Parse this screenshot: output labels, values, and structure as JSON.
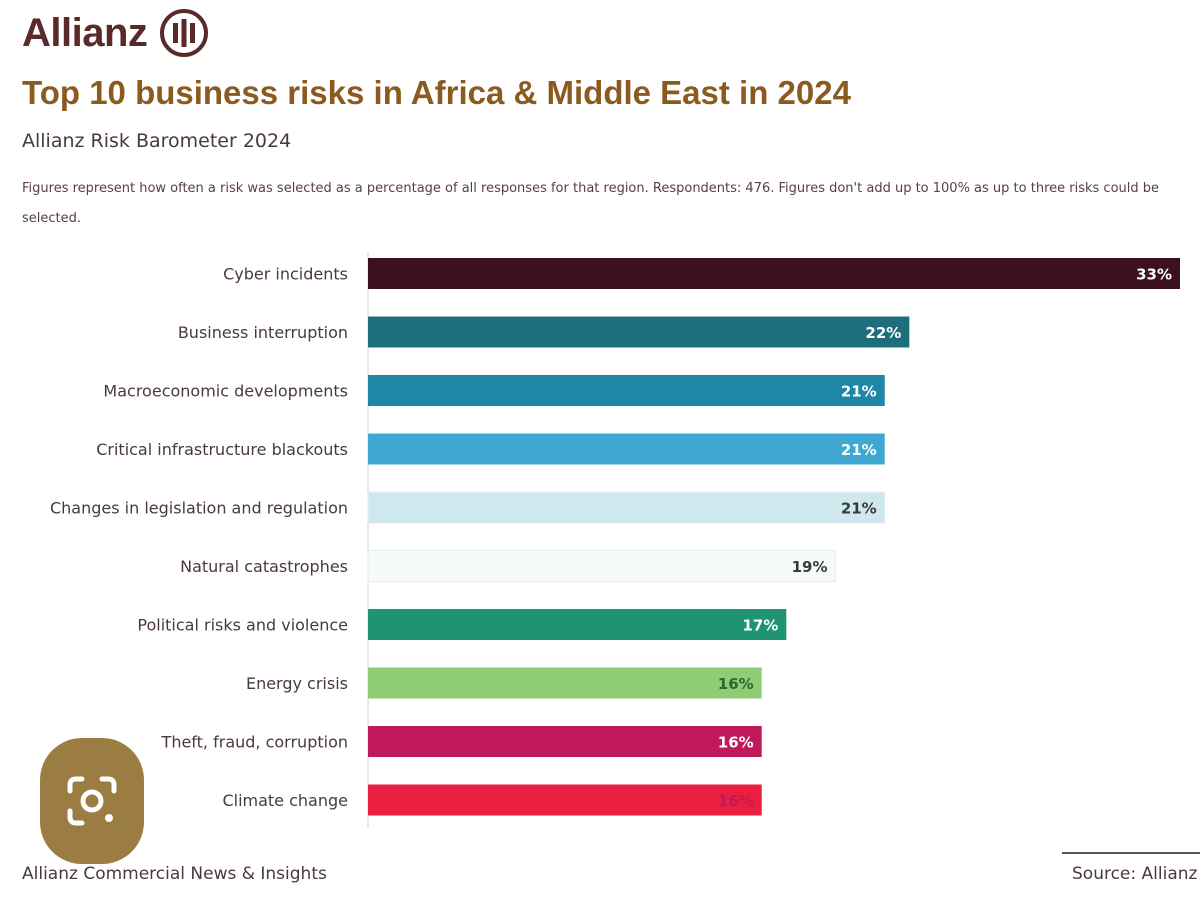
{
  "header": {
    "logo_text": "Allianz",
    "title": "Top 10 business risks in Africa & Middle East in 2024",
    "subtitle": "Allianz Risk Barometer 2024",
    "note": "Figures represent how often a risk was selected as a percentage of all responses for that region. Respondents: 476. Figures don't add up to 100% as up to three risks could be selected."
  },
  "footer": {
    "left": "Allianz Commercial News & Insights",
    "right": "Source: Allianz"
  },
  "icons": {
    "lens": "camera-lens-icon",
    "logo": "allianz-eagle-logo"
  },
  "chart_data": {
    "type": "bar",
    "orientation": "horizontal",
    "categories": [
      "Cyber incidents",
      "Business interruption",
      "Macroeconomic developments",
      "Critical infrastructure blackouts",
      "Changes in legislation and regulation",
      "Natural catastrophes",
      "Political risks and violence",
      "Energy crisis",
      "Theft, fraud, corruption",
      "Climate change"
    ],
    "values": [
      33,
      22,
      21,
      21,
      21,
      19,
      17,
      16,
      16,
      16
    ],
    "value_labels": [
      "33%",
      "22%",
      "21%",
      "21%",
      "21%",
      "19%",
      "17%",
      "16%",
      "16%",
      "16%"
    ],
    "colors": [
      "#3d1020",
      "#1f6e7c",
      "#1f86a6",
      "#3ea7d2",
      "#cfe8ee",
      "#f5fafb",
      "#1e9470",
      "#8fcc75",
      "#c0195a",
      "#ea1f40"
    ],
    "label_colors": [
      "#ffffff",
      "#ffffff",
      "#ffffff",
      "#ffffff",
      "#3a3a3a",
      "#3a3a3a",
      "#ffffff",
      "#2a6a2a",
      "#ffffff",
      "#c0195a"
    ],
    "xlim": [
      0,
      33
    ],
    "grid": false,
    "legend": "none"
  }
}
